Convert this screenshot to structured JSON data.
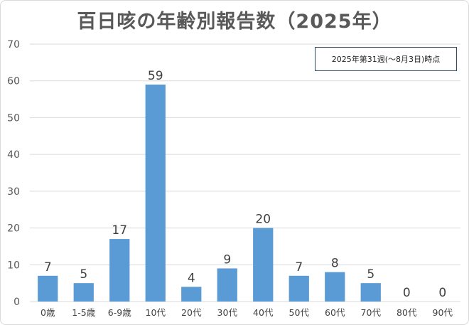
{
  "chart_data": {
    "type": "bar",
    "title": "百日咳の年齢別報告数（2025年）",
    "annotation": "2025年第31週(～8月3日)時点",
    "categories": [
      "0歳",
      "1-5歳",
      "6-9歳",
      "10代",
      "20代",
      "30代",
      "40代",
      "50代",
      "60代",
      "70代",
      "80代",
      "90代"
    ],
    "values": [
      7,
      5,
      17,
      59,
      4,
      9,
      20,
      7,
      8,
      5,
      0,
      0
    ],
    "ylim": [
      0,
      70
    ],
    "yticks": [
      0,
      10,
      20,
      30,
      40,
      50,
      60,
      70
    ],
    "xlabel": "",
    "ylabel": "",
    "grid": true,
    "bar_color": "#5b9bd5",
    "grid_color": "#d9d9d9",
    "show_data_labels": true
  }
}
